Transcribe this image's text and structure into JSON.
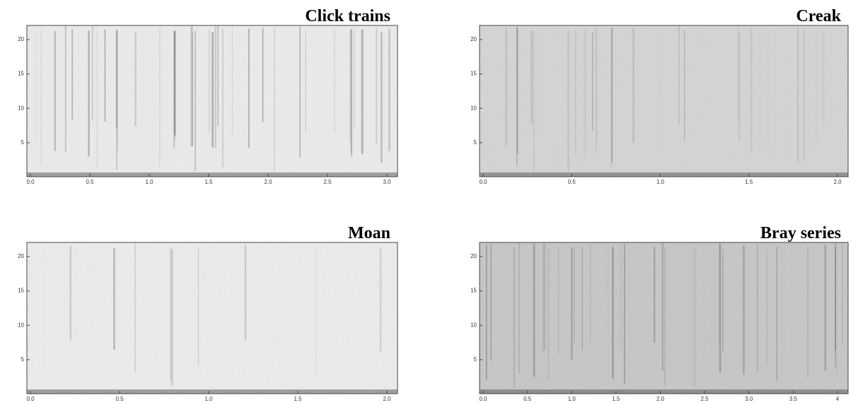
{
  "panels": [
    {
      "title": "Click trains",
      "xticks": [
        "0.0",
        "0.5",
        "1.0",
        "1.5",
        "2.0",
        "2.5",
        "3.0"
      ],
      "yticks": [
        "20",
        "15",
        "10",
        "5"
      ]
    },
    {
      "title": "Creak",
      "xticks": [
        "0.0",
        "0.5",
        "1.0",
        "1.5",
        "2.0"
      ],
      "yticks": [
        "20",
        "15",
        "10",
        "5"
      ]
    },
    {
      "title": "Moan",
      "xticks": [
        "0.0",
        "0.5",
        "1.0",
        "1.5",
        "2.0"
      ],
      "yticks": [
        "20",
        "15",
        "10",
        "5"
      ]
    },
    {
      "title": "Bray series",
      "xticks": [
        "0.0",
        "0.5",
        "1.0",
        "1.5",
        "2.0",
        "2.5",
        "3.0",
        "3.5",
        "4"
      ],
      "yticks": [
        "20",
        "15",
        "10",
        "5"
      ]
    }
  ]
}
